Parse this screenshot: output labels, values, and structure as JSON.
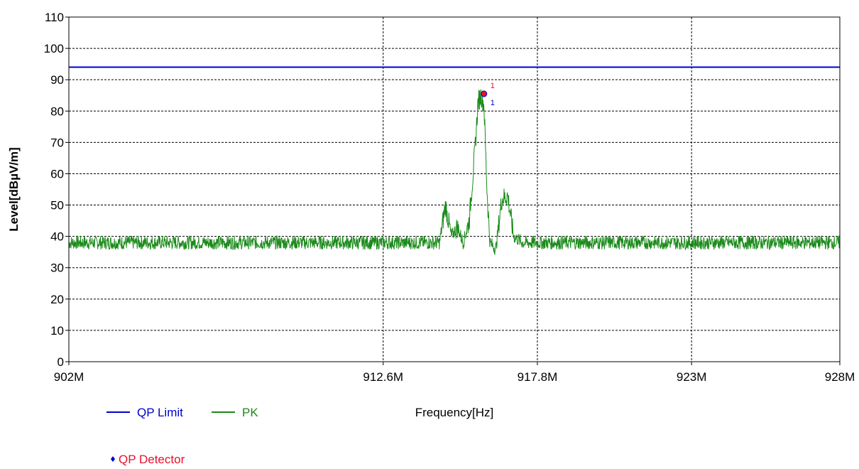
{
  "chart_data": {
    "type": "line",
    "xlabel": "Frequency[Hz]",
    "ylabel": "Level[dBµV/m]",
    "xlim": [
      902,
      928
    ],
    "ylim": [
      0,
      110
    ],
    "y_ticks": [
      0,
      10,
      20,
      30,
      40,
      50,
      60,
      70,
      80,
      90,
      100,
      110
    ],
    "x_ticks": [
      {
        "value": 902,
        "label": "902M"
      },
      {
        "value": 912.6,
        "label": "912.6M"
      },
      {
        "value": 917.8,
        "label": "917.8M"
      },
      {
        "value": 923,
        "label": "923M"
      },
      {
        "value": 928,
        "label": "928M"
      }
    ],
    "grid": true,
    "series": [
      {
        "name": "QP Limit",
        "color": "#0000cc",
        "x": [
          902,
          928
        ],
        "y": [
          94,
          94
        ]
      },
      {
        "name": "PK",
        "color": "#1a8a1a",
        "x": [
          902,
          904,
          906,
          908,
          910,
          912,
          913.6,
          914.5,
          914.7,
          914.9,
          915.1,
          915.3,
          915.5,
          915.7,
          915.8,
          915.9,
          916.0,
          916.1,
          916.2,
          916.4,
          916.6,
          916.8,
          917.0,
          917.3,
          917.6,
          918,
          920,
          922,
          924,
          926,
          928
        ],
        "y": [
          38,
          38,
          38,
          38,
          38,
          38,
          38,
          38,
          50,
          40,
          43,
          38,
          45,
          68,
          83,
          85,
          82,
          55,
          38,
          36,
          52,
          53,
          40,
          38,
          38,
          38,
          38,
          38,
          38,
          38,
          38
        ]
      }
    ],
    "markers": [
      {
        "name": "QP Detector",
        "label": "1",
        "x": 916.0,
        "y": 85.5,
        "color": "#e8102a"
      }
    ],
    "legend": {
      "placement": "bottom-left",
      "items": [
        {
          "label": "QP Limit",
          "kind": "line",
          "symbol_color": "#0000cc",
          "text_color": "#0000cc"
        },
        {
          "label": "PK",
          "kind": "line",
          "symbol_color": "#1a8a1a",
          "text_color": "#1a8a1a"
        },
        {
          "label": "QP Detector",
          "kind": "marker",
          "symbol_color": "#0000cc",
          "text_color": "#e8102a"
        }
      ]
    }
  }
}
